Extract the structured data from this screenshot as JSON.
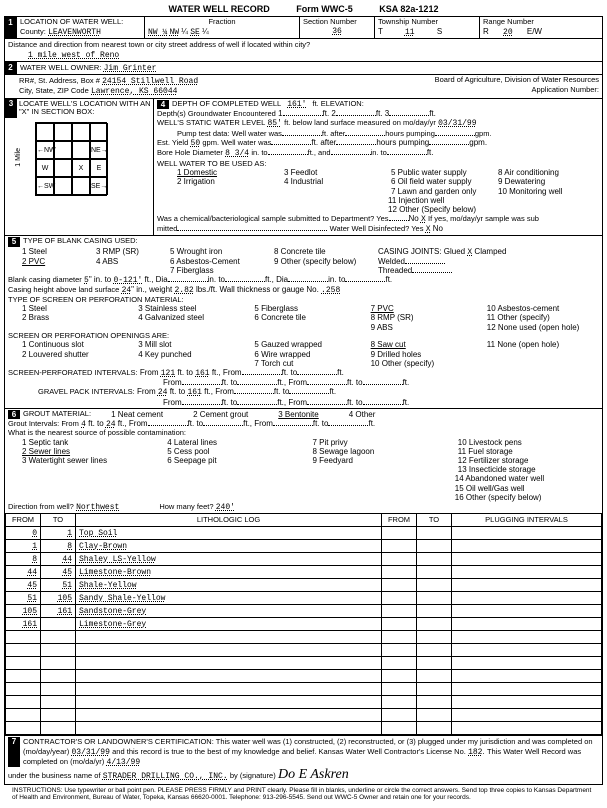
{
  "form": {
    "title": "WATER WELL RECORD",
    "form_no": "Form WWC-5",
    "ksa": "KSA 82a-1212"
  },
  "s1": {
    "heading": "LOCATION OF WATER WELL:",
    "county_label": "County:",
    "county": "LEAVENWORTH",
    "fraction_label": "Fraction",
    "frac1": "NW ¼",
    "frac2": "NW",
    "frac3": "¼",
    "frac4": "SE",
    "frac5": "¼",
    "secnum_label": "Section Number",
    "secnum": "36",
    "twp_label": "Township Number",
    "twp_t": "T",
    "twp": "11",
    "twp_s": "S",
    "range_label": "Range Number",
    "range_r": "R",
    "range": "20",
    "range_ew": "E/W",
    "dist_label": "Distance and direction from nearest town or city street address of well if located within city?",
    "dist": "1 mile west of Reno"
  },
  "s2": {
    "heading": "WATER WELL OWNER:",
    "owner": "Jim Grinter",
    "rr_label": "RR#, St. Address, Box #",
    "rr": "24154 Stillwell Road",
    "city_label": "City, State, ZIP Code",
    "city": "Lawrence, KS  66044",
    "board": "Board of Agriculture, Division of Water Resources",
    "appno_label": "Application Number:"
  },
  "s3": {
    "heading": "LOCATE WELL'S LOCATION WITH AN \"X\" IN SECTION BOX:",
    "nw": "NW",
    "ne": "NE",
    "sw": "SW",
    "se": "SE",
    "w": "W",
    "e": "E",
    "x": "X",
    "n": "N",
    "s": "S",
    "mile": "1 Mile"
  },
  "s4": {
    "heading": "DEPTH OF COMPLETED WELL",
    "depth": "161'",
    "elev_label": "ft. ELEVATION:",
    "gw_label": "Depth(s) Groundwater Encountered",
    "gw1": "1",
    "gw2": "2",
    "gw3": "3",
    "swl_label": "WELL'S STATIC WATER LEVEL",
    "swl": "85'",
    "swl_after": "ft. below land surface measured on mo/day/yr",
    "swl_date": "03/31/99",
    "pump_label": "Pump test data: Well water was",
    "pump_after": "ft. after",
    "pump_hours": "hours pumping",
    "pump_gpm": "gpm.",
    "yield_label": "Est. Yield",
    "yield": "50",
    "yield_after": "gpm. Well water was",
    "bore_label": "Bore Hole Diameter",
    "bore": "8 3/4",
    "bore_in": "in. to",
    "bore_and": "ft., and",
    "bore_into": "in. to",
    "use_label": "WELL WATER TO BE USED AS:",
    "u1": "1 Domestic",
    "u2": "2 Irrigation",
    "u3": "3 Feedlot",
    "u4": "4 Industrial",
    "u5": "5 Public water supply",
    "u6": "6 Oil field water supply",
    "u7": "7 Lawn and garden only",
    "u8": "8 Air conditioning",
    "u9": "9 Dewatering",
    "u10": "10 Monitoring well",
    "u11": "11 Injection well",
    "u12": "12 Other (Specify below)",
    "chem_label": "Was a chemical/bacteriological sample submitted to Department? Yes",
    "chem_no": "No",
    "chem_x": "X",
    "chem_if": "If yes, mo/day/yr sample was sub",
    "mitted": "mitted",
    "disinfect": "Water Well Disinfected? Yes",
    "dx": "X",
    "dno": "No"
  },
  "s5": {
    "heading": "TYPE OF BLANK CASING USED:",
    "c1": "1 Steel",
    "c2": "2 PVC",
    "c3": "3 RMP (SR)",
    "c4": "4 ABS",
    "c5": "5 Wrought iron",
    "c6": "6 Asbestos-Cement",
    "c7": "7 Fiberglass",
    "c8": "8 Concrete tile",
    "c9": "9 Other (specify below)",
    "joints": "CASING JOINTS: Glued",
    "jx": "X",
    "jclamp": "Clamped",
    "jweld": "Welded",
    "jthread": "Threaded",
    "bcd_label": "Blank casing diameter",
    "bcd": "5",
    "bcd_in": "in. to",
    "bcd_to": "0-121'",
    "bcd_ft": "ft., Dia",
    "bcd_in2": "in. to",
    "bcd_ft2": "ft., Dia",
    "bcd_in3": "in. to",
    "bcd_ft3": "ft.",
    "chal_label": "Casing height above land surface",
    "chal": "24",
    "chal_in": "in., weight",
    "chal_wt": "2.82",
    "chal_lbs": "lbs./ft. Wall thickness or gauge No.",
    "chal_g": ".258",
    "screen_label": "TYPE OF SCREEN OR PERFORATION MATERIAL:",
    "sc1": "1 Steel",
    "sc2": "2 Brass",
    "sc3": "3 Stainless steel",
    "sc4": "4 Galvanized steel",
    "sc5": "5 Fiberglass",
    "sc6": "6 Concrete tile",
    "sc7": "7 PVC",
    "sc8": "8 RMP (SR)",
    "sc9": "9 ABS",
    "sc10": "10 Asbestos-cement",
    "sc11": "11 Other (specify)",
    "sc12": "12 None used (open hole)",
    "open_label": "SCREEN OR PERFORATION OPENINGS ARE:",
    "o1": "1 Continuous slot",
    "o2": "2 Louvered shutter",
    "o3": "3 Mill slot",
    "o4": "4 Key punched",
    "o5": "5 Gauzed wrapped",
    "o6": "6 Wire wrapped",
    "o7": "7 Torch cut",
    "o8": "8 Saw cut",
    "o9": "9 Drilled holes",
    "o10": "10 Other (specify)",
    "o11": "11 None (open hole)",
    "spi_label": "SCREEN-PERFORATED INTERVALS:",
    "from": "From",
    "ftto": "ft. to",
    "ft": "ft.",
    "spi_f1": "121",
    "spi_t1": "161",
    "gpi_label": "GRAVEL PACK INTERVALS:",
    "gpi_f1": "24",
    "gpi_t1": "161"
  },
  "s6": {
    "heading": "GROUT MATERIAL:",
    "g1": "1 Neat cement",
    "g2": "2 Cement grout",
    "g3": "3 Bentonite",
    "g4": "4 Other",
    "gi_label": "Grout Intervals: From",
    "gi_f": "4",
    "gi_to": "ft. to",
    "gi_t": "24",
    "gi_ft": "ft., From",
    "gi_ft2": "ft. to",
    "gi_ft3": "ft., From",
    "gi_ft4": "ft. to",
    "gi_ft5": "ft.",
    "contam_label": "What is the nearest source of possible contamination:",
    "p1": "1 Septic tank",
    "p2": "2 Sewer lines",
    "p3": "3 Watertight sewer lines",
    "p4": "4 Lateral lines",
    "p5": "5 Cess pool",
    "p6": "6 Seepage pit",
    "p7": "7 Pit privy",
    "p8": "8 Sewage lagoon",
    "p9": "9 Feedyard",
    "p10": "10 Livestock pens",
    "p11": "11 Fuel storage",
    "p12": "12 Fertilizer storage",
    "p13": "13 Insecticide storage",
    "p14": "14 Abandoned water well",
    "p15": "15 Oil well/Gas well",
    "p16": "16 Other (specify below)",
    "dir_label": "Direction from well?",
    "dir": "Northwest",
    "dist_label": "How many feet?",
    "dist": "240'",
    "th_from": "FROM",
    "th_to": "TO",
    "th_log": "LITHOLOGIC LOG",
    "th_from2": "FROM",
    "th_to2": "TO",
    "th_plug": "PLUGGING INTERVALS",
    "rows": [
      {
        "f": "0",
        "t": "1",
        "d": "Top Soil"
      },
      {
        "f": "1",
        "t": "8",
        "d": "Clay-Brown"
      },
      {
        "f": "8",
        "t": "44",
        "d": "Shaley LS-Yellow"
      },
      {
        "f": "44",
        "t": "45",
        "d": "Limestone-Brown"
      },
      {
        "f": "45",
        "t": "51",
        "d": "Shale-Yellow"
      },
      {
        "f": "51",
        "t": "105",
        "d": "Sandy Shale-Yellow"
      },
      {
        "f": "105",
        "t": "161",
        "d": "Sandstone-Grey"
      },
      {
        "f": "161",
        "t": "",
        "d": "Limestone-Grey"
      }
    ]
  },
  "s7": {
    "cert": "CONTRACTOR'S OR LANDOWNER'S CERTIFICATION: This water well was (1) constructed, (2) reconstructed, or (3) plugged under my jurisdiction and was completed on (mo/day/year)",
    "date": "03/31/99",
    "cert2": "and this record is true to the best of my knowledge and belief. Kansas Water Well Contractor's License No.",
    "lic": "182",
    "cert3": "This Water Well Record was completed on (mo/da/yr)",
    "date2": "4/13/99",
    "biz_label": "under the business name of",
    "biz": "STRADER DRILLING CO., INC.",
    "by": "by (signature)",
    "sig": "Do E Askren"
  },
  "instr": "INSTRUCTIONS: Use typewriter or ball point pen. PLEASE PRESS FIRMLY and PRINT clearly. Please fill in blanks, underline or circle the correct answers. Send top three copies to Kansas Department of Health and Environment, Bureau of Water, Topeka, Kansas 66620-0001. Telephone: 913-296-5545. Send out WWC-5 Owner and retain one for your records."
}
